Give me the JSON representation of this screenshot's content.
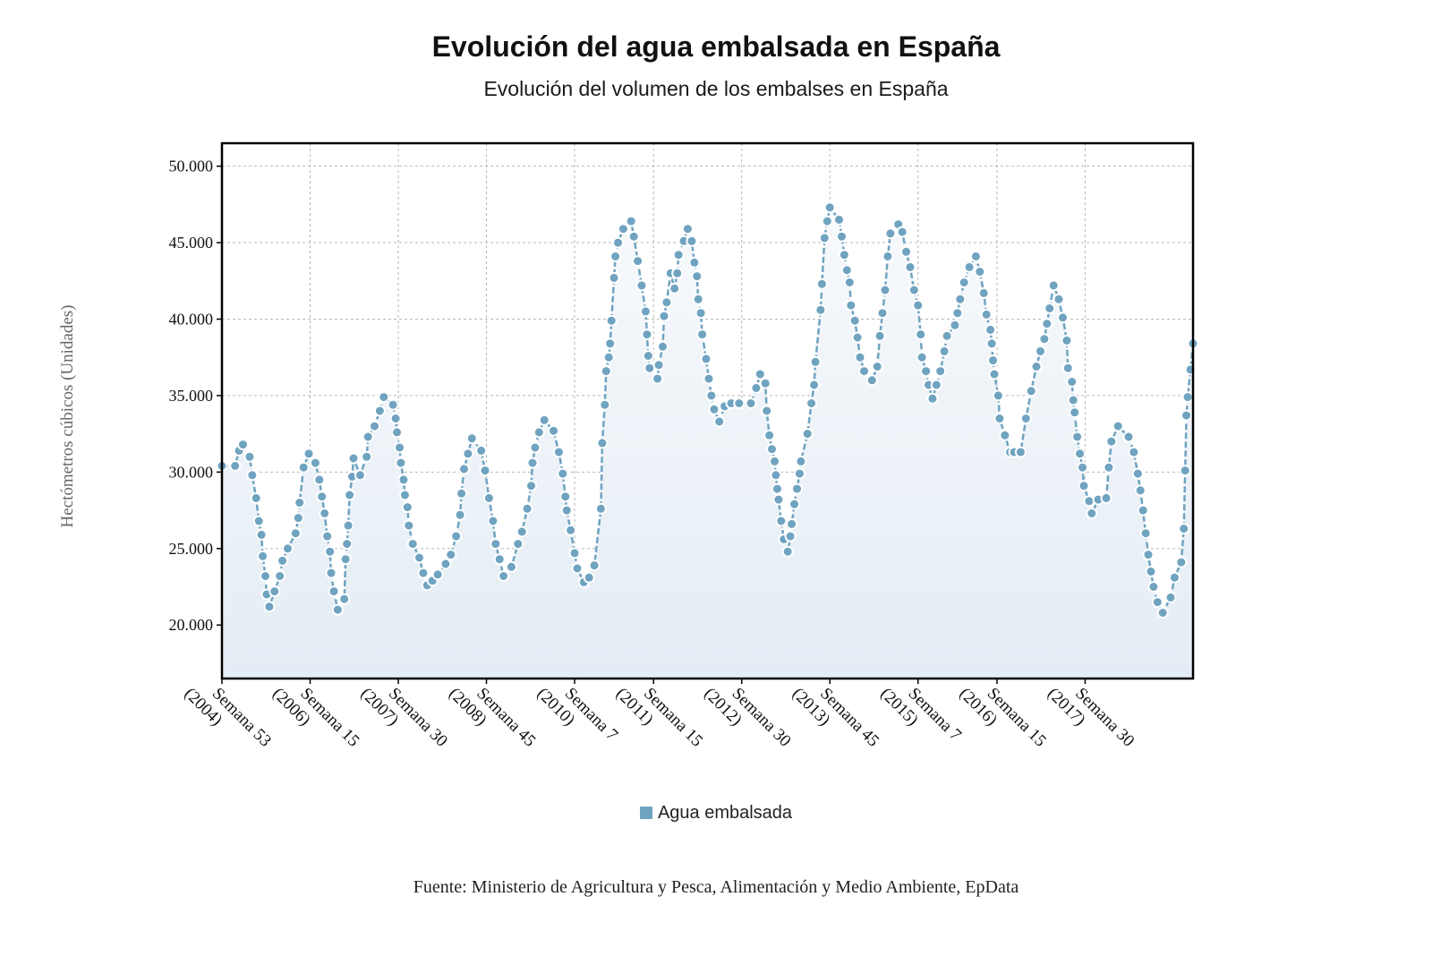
{
  "header": {
    "title": "Evolución del agua embalsada en España",
    "subtitle": "Evolución del volumen de los embalses en España"
  },
  "footer": {
    "source": "Fuente: Ministerio de Agricultura y Pesca, Alimentación y Medio Ambiente, EpData"
  },
  "colors": {
    "series": "#6fa3c0",
    "area_top": "#f7f9fc",
    "area_bottom": "#e4edf5",
    "grid": "#b8b8b8",
    "frame": "#000000"
  },
  "chart_data": {
    "type": "line",
    "title": "Evolución del agua embalsada en España",
    "subtitle": "Evolución del volumen de los embalses en España",
    "ylabel": "Hectómetros cúbicos (Unidades)",
    "xlabel": "",
    "ylim": [
      16500,
      51500
    ],
    "yticks": [
      20000,
      25000,
      30000,
      35000,
      40000,
      45000,
      50000
    ],
    "ytick_labels": [
      "20.000",
      "25.000",
      "30.000",
      "35.000",
      "40.000",
      "45.000",
      "50.000"
    ],
    "xticks": [
      {
        "line1": "Semana 53",
        "line2": "(2004)",
        "week": 0
      },
      {
        "line1": "Semana 15",
        "line2": "(2006)",
        "week": 67
      },
      {
        "line1": "Semana 30",
        "line2": "(2007)",
        "week": 134
      },
      {
        "line1": "Semana 45",
        "line2": "(2008)",
        "week": 201
      },
      {
        "line1": "Semana 7",
        "line2": "(2010)",
        "week": 268
      },
      {
        "line1": "Semana 15",
        "line2": "(2011)",
        "week": 328
      },
      {
        "line1": "Semana 30",
        "line2": "(2012)",
        "week": 395
      },
      {
        "line1": "Semana 45",
        "line2": "(2013)",
        "week": 462
      },
      {
        "line1": "Semana 7",
        "line2": "(2015)",
        "week": 529
      },
      {
        "line1": "Semana 15",
        "line2": "(2016)",
        "week": 589
      },
      {
        "line1": "Semana 30",
        "line2": "(2017)",
        "week": 656
      }
    ],
    "grid": true,
    "legend_position": "bottom-center",
    "series": [
      {
        "name": "Agua embalsada",
        "points": [
          [
            0,
            30400
          ],
          [
            10,
            30400
          ],
          [
            13,
            31400
          ],
          [
            16,
            31800
          ],
          [
            21,
            31000
          ],
          [
            23,
            29800
          ],
          [
            26,
            28300
          ],
          [
            28,
            26800
          ],
          [
            30,
            25900
          ],
          [
            31,
            24500
          ],
          [
            33,
            23200
          ],
          [
            34,
            22000
          ],
          [
            36,
            21200
          ],
          [
            40,
            22200
          ],
          [
            44,
            23200
          ],
          [
            46,
            24200
          ],
          [
            50,
            25000
          ],
          [
            56,
            26000
          ],
          [
            58,
            27000
          ],
          [
            59,
            28000
          ],
          [
            62,
            30300
          ],
          [
            66,
            31200
          ],
          [
            71,
            30600
          ],
          [
            74,
            29500
          ],
          [
            76,
            28400
          ],
          [
            78,
            27300
          ],
          [
            80,
            25800
          ],
          [
            82,
            24800
          ],
          [
            83,
            23400
          ],
          [
            85,
            22200
          ],
          [
            88,
            21000
          ],
          [
            93,
            21700
          ],
          [
            94,
            24300
          ],
          [
            95,
            25300
          ],
          [
            96,
            26500
          ],
          [
            97,
            28500
          ],
          [
            99,
            29700
          ],
          [
            100,
            30900
          ],
          [
            105,
            29800
          ],
          [
            110,
            31000
          ],
          [
            111,
            32300
          ],
          [
            116,
            33000
          ],
          [
            120,
            34000
          ],
          [
            123,
            34900
          ],
          [
            130,
            34400
          ],
          [
            132,
            33500
          ],
          [
            133,
            32600
          ],
          [
            135,
            31600
          ],
          [
            136,
            30600
          ],
          [
            138,
            29500
          ],
          [
            139,
            28500
          ],
          [
            141,
            27700
          ],
          [
            142,
            26500
          ],
          [
            145,
            25300
          ],
          [
            150,
            24400
          ],
          [
            153,
            23400
          ],
          [
            156,
            22600
          ],
          [
            160,
            22900
          ],
          [
            164,
            23300
          ],
          [
            170,
            24000
          ],
          [
            174,
            24600
          ],
          [
            178,
            25800
          ],
          [
            181,
            27200
          ],
          [
            182,
            28600
          ],
          [
            184,
            30200
          ],
          [
            187,
            31200
          ],
          [
            190,
            32200
          ],
          [
            197,
            31400
          ],
          [
            200,
            30100
          ],
          [
            203,
            28300
          ],
          [
            206,
            26800
          ],
          [
            208,
            25300
          ],
          [
            211,
            24300
          ],
          [
            214,
            23200
          ],
          [
            220,
            23800
          ],
          [
            225,
            25300
          ],
          [
            228,
            26100
          ],
          [
            232,
            27600
          ],
          [
            235,
            29100
          ],
          [
            236,
            30600
          ],
          [
            238,
            31600
          ],
          [
            241,
            32600
          ],
          [
            245,
            33400
          ],
          [
            252,
            32700
          ],
          [
            256,
            31300
          ],
          [
            259,
            29900
          ],
          [
            261,
            28400
          ],
          [
            262,
            27500
          ],
          [
            265,
            26200
          ],
          [
            268,
            24700
          ],
          [
            270,
            23700
          ],
          [
            275,
            22800
          ],
          [
            279,
            23100
          ],
          [
            283,
            23900
          ],
          [
            288,
            27600
          ],
          [
            289,
            31900
          ],
          [
            291,
            34400
          ],
          [
            292,
            36600
          ],
          [
            294,
            37500
          ],
          [
            295,
            38400
          ],
          [
            296,
            39900
          ],
          [
            298,
            42700
          ],
          [
            299,
            44100
          ],
          [
            301,
            45000
          ],
          [
            305,
            45900
          ],
          [
            311,
            46400
          ],
          [
            313,
            45400
          ],
          [
            316,
            43800
          ],
          [
            319,
            42200
          ],
          [
            322,
            40500
          ],
          [
            323,
            39000
          ],
          [
            324,
            37600
          ],
          [
            325,
            36800
          ],
          [
            331,
            36100
          ],
          [
            332,
            37000
          ],
          [
            335,
            38200
          ],
          [
            336,
            40200
          ],
          [
            338,
            41100
          ],
          [
            341,
            43000
          ],
          [
            344,
            42000
          ],
          [
            346,
            43000
          ],
          [
            347,
            44200
          ],
          [
            351,
            45100
          ],
          [
            354,
            45900
          ],
          [
            357,
            45100
          ],
          [
            359,
            43700
          ],
          [
            361,
            42800
          ],
          [
            362,
            41300
          ],
          [
            364,
            40400
          ],
          [
            365,
            39000
          ],
          [
            368,
            37400
          ],
          [
            370,
            36100
          ],
          [
            372,
            35000
          ],
          [
            374,
            34100
          ],
          [
            378,
            33300
          ],
          [
            382,
            34300
          ],
          [
            387,
            34500
          ],
          [
            393,
            34500
          ],
          [
            402,
            34500
          ],
          [
            406,
            35500
          ],
          [
            409,
            36400
          ],
          [
            413,
            35800
          ],
          [
            414,
            34000
          ],
          [
            416,
            32400
          ],
          [
            418,
            31500
          ],
          [
            420,
            30700
          ],
          [
            421,
            29800
          ],
          [
            422,
            28900
          ],
          [
            423,
            28200
          ],
          [
            425,
            26800
          ],
          [
            427,
            25600
          ],
          [
            430,
            24800
          ],
          [
            432,
            25800
          ],
          [
            433,
            26600
          ],
          [
            435,
            27900
          ],
          [
            437,
            28900
          ],
          [
            439,
            29900
          ],
          [
            440,
            30700
          ],
          [
            445,
            32500
          ],
          [
            448,
            34500
          ],
          [
            450,
            35700
          ],
          [
            451,
            37200
          ],
          [
            455,
            40600
          ],
          [
            456,
            42300
          ],
          [
            458,
            45300
          ],
          [
            460,
            46400
          ],
          [
            462,
            47300
          ],
          [
            469,
            46500
          ],
          [
            471,
            45400
          ],
          [
            473,
            44200
          ],
          [
            475,
            43200
          ],
          [
            477,
            42400
          ],
          [
            478,
            40900
          ],
          [
            481,
            39900
          ],
          [
            483,
            38800
          ],
          [
            485,
            37500
          ],
          [
            488,
            36600
          ],
          [
            494,
            36000
          ],
          [
            498,
            36900
          ],
          [
            500,
            38900
          ],
          [
            502,
            40400
          ],
          [
            504,
            41900
          ],
          [
            506,
            44100
          ],
          [
            508,
            45600
          ],
          [
            514,
            46200
          ],
          [
            517,
            45700
          ],
          [
            520,
            44400
          ],
          [
            523,
            43400
          ],
          [
            526,
            41900
          ],
          [
            529,
            40900
          ],
          [
            531,
            39000
          ],
          [
            532,
            37500
          ],
          [
            535,
            36600
          ],
          [
            537,
            35700
          ],
          [
            540,
            34800
          ],
          [
            543,
            35700
          ],
          [
            546,
            36600
          ],
          [
            549,
            37900
          ],
          [
            551,
            38900
          ],
          [
            557,
            39600
          ],
          [
            559,
            40400
          ],
          [
            561,
            41300
          ],
          [
            564,
            42400
          ],
          [
            568,
            43400
          ],
          [
            573,
            44100
          ],
          [
            576,
            43100
          ],
          [
            579,
            41700
          ],
          [
            581,
            40300
          ],
          [
            584,
            39300
          ],
          [
            585,
            38400
          ],
          [
            586,
            37300
          ],
          [
            587,
            36400
          ],
          [
            590,
            35000
          ],
          [
            591,
            33500
          ],
          [
            595,
            32400
          ],
          [
            599,
            31300
          ],
          [
            602,
            31300
          ],
          [
            607,
            31300
          ],
          [
            611,
            33500
          ],
          [
            615,
            35300
          ],
          [
            619,
            36900
          ],
          [
            622,
            37900
          ],
          [
            625,
            38700
          ],
          [
            627,
            39700
          ],
          [
            629,
            40700
          ],
          [
            632,
            42200
          ],
          [
            636,
            41300
          ],
          [
            639,
            40100
          ],
          [
            642,
            38600
          ],
          [
            643,
            36800
          ],
          [
            646,
            35900
          ],
          [
            647,
            34700
          ],
          [
            648,
            33900
          ],
          [
            650,
            32300
          ],
          [
            652,
            31200
          ],
          [
            654,
            30300
          ],
          [
            655,
            29100
          ],
          [
            659,
            28100
          ],
          [
            661,
            27300
          ],
          [
            666,
            28200
          ],
          [
            672,
            28300
          ],
          [
            674,
            30300
          ],
          [
            676,
            32000
          ],
          [
            681,
            33000
          ],
          [
            689,
            32300
          ],
          [
            693,
            31300
          ],
          [
            696,
            29900
          ],
          [
            698,
            28800
          ],
          [
            700,
            27500
          ],
          [
            702,
            26000
          ],
          [
            704,
            24600
          ],
          [
            706,
            23500
          ],
          [
            708,
            22500
          ],
          [
            711,
            21500
          ],
          [
            715,
            20800
          ],
          [
            721,
            21800
          ],
          [
            724,
            23100
          ],
          [
            729,
            24100
          ],
          [
            731,
            26300
          ],
          [
            732,
            30100
          ],
          [
            733,
            33700
          ],
          [
            734,
            34900
          ],
          [
            736,
            36700
          ],
          [
            738,
            38400
          ]
        ]
      }
    ]
  },
  "legend": {
    "label": "Agua embalsada"
  }
}
